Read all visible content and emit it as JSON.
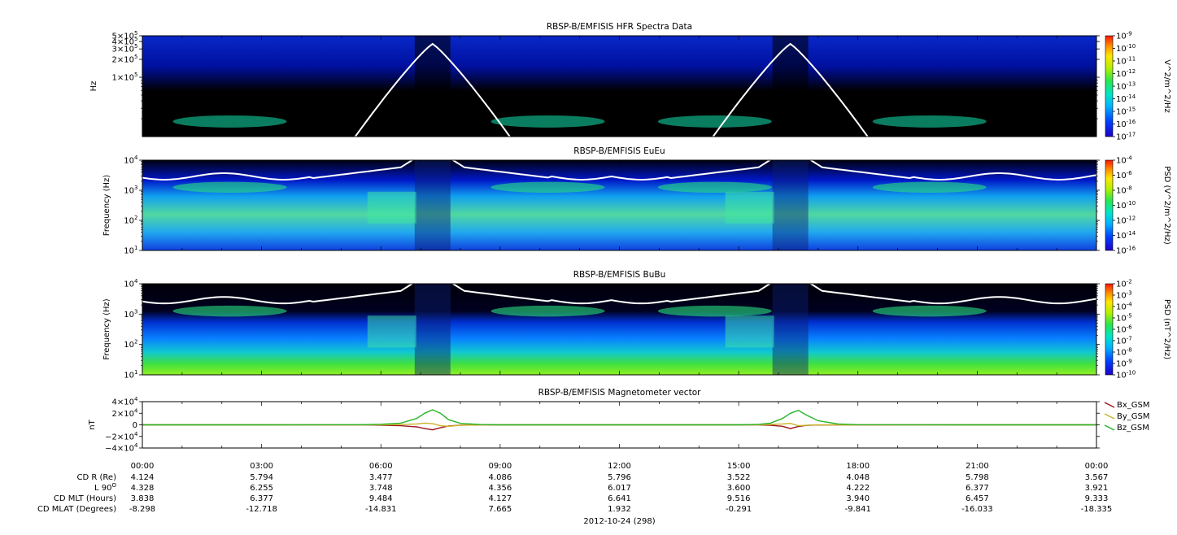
{
  "chart_data": [
    {
      "type": "heatmap",
      "title": "RBSP-B/EMFISIS  HFR Spectra Data",
      "ylabel": "Hz",
      "scale": "log",
      "yticks": [
        {
          "v": 100000,
          "m": "1",
          "e": "5"
        },
        {
          "v": 200000,
          "m": "2",
          "e": "5"
        },
        {
          "v": 300000,
          "m": "3",
          "e": "5"
        },
        {
          "v": 400000,
          "m": "4",
          "e": "5"
        },
        {
          "v": 500000,
          "m": "5",
          "e": "5"
        }
      ],
      "ylim": [
        10000,
        500000
      ],
      "colorbar": {
        "label": "V^2/m^2/Hz",
        "ticks": [
          {
            "m": "10",
            "e": "-9"
          },
          {
            "m": "10",
            "e": "-10"
          },
          {
            "m": "10",
            "e": "-11"
          },
          {
            "m": "10",
            "e": "-12"
          },
          {
            "m": "10",
            "e": "-13"
          },
          {
            "m": "10",
            "e": "-14"
          },
          {
            "m": "10",
            "e": "-15"
          },
          {
            "m": "10",
            "e": "-16"
          },
          {
            "m": "10",
            "e": "-17"
          }
        ]
      }
    },
    {
      "type": "heatmap",
      "title": "RBSP-B/EMFISIS  EuEu",
      "ylabel": "Frequency (Hz)",
      "scale": "log",
      "yticks": [
        {
          "v": 10,
          "m": "10",
          "e": "1"
        },
        {
          "v": 100,
          "m": "10",
          "e": "2"
        },
        {
          "v": 1000,
          "m": "10",
          "e": "3"
        },
        {
          "v": 10000,
          "m": "10",
          "e": "4"
        }
      ],
      "ylim": [
        10,
        10000
      ],
      "colorbar": {
        "label": "PSD (V^2/m^2/Hz)",
        "ticks": [
          {
            "m": "10",
            "e": "-4"
          },
          {
            "m": "10",
            "e": "-6"
          },
          {
            "m": "10",
            "e": "-8"
          },
          {
            "m": "10",
            "e": "-10"
          },
          {
            "m": "10",
            "e": "-12"
          },
          {
            "m": "10",
            "e": "-14"
          },
          {
            "m": "10",
            "e": "-16"
          }
        ]
      }
    },
    {
      "type": "heatmap",
      "title": "RBSP-B/EMFISIS  BuBu",
      "ylabel": "Frequency (Hz)",
      "scale": "log",
      "yticks": [
        {
          "v": 10,
          "m": "10",
          "e": "1"
        },
        {
          "v": 100,
          "m": "10",
          "e": "2"
        },
        {
          "v": 1000,
          "m": "10",
          "e": "3"
        },
        {
          "v": 10000,
          "m": "10",
          "e": "4"
        }
      ],
      "ylim": [
        10,
        10000
      ],
      "colorbar": {
        "label": "PSD (nT^2/Hz)",
        "ticks": [
          {
            "m": "10",
            "e": "-2"
          },
          {
            "m": "10",
            "e": "-3"
          },
          {
            "m": "10",
            "e": "-4"
          },
          {
            "m": "10",
            "e": "-5"
          },
          {
            "m": "10",
            "e": "-6"
          },
          {
            "m": "10",
            "e": "-7"
          },
          {
            "m": "10",
            "e": "-8"
          },
          {
            "m": "10",
            "e": "-9"
          },
          {
            "m": "10",
            "e": "-10"
          }
        ]
      }
    },
    {
      "type": "line",
      "title": "RBSP-B/EMFISIS  Magnetometer vector",
      "ylabel": "nT",
      "ylim": [
        -40000,
        40000
      ],
      "yticks": [
        {
          "v": 40000,
          "label": "4×10",
          "e": "4"
        },
        {
          "v": 20000,
          "label": "2×10",
          "e": "4"
        },
        {
          "v": 0,
          "label": "0",
          "e": ""
        },
        {
          "v": -20000,
          "label": "−2×10",
          "e": "4"
        },
        {
          "v": -40000,
          "label": "−4×10",
          "e": "4"
        }
      ],
      "x": [
        0,
        3,
        5.5,
        6.0,
        6.5,
        6.9,
        7.1,
        7.3,
        7.5,
        7.7,
        8.0,
        8.5,
        9,
        12,
        15,
        15.5,
        15.8,
        16.1,
        16.3,
        16.5,
        16.7,
        17.0,
        17.5,
        18,
        21,
        24
      ],
      "series": [
        {
          "name": "Bx_GSM",
          "color": "#a0141e",
          "values": [
            0,
            0,
            -200,
            -600,
            -1500,
            -3500,
            -6500,
            -8500,
            -5000,
            -2000,
            -600,
            -200,
            0,
            0,
            0,
            -200,
            -700,
            -2500,
            -6500,
            -3000,
            -1000,
            -300,
            -100,
            0,
            0,
            0
          ]
        },
        {
          "name": "By_GSM",
          "color": "#c8b428",
          "values": [
            0,
            0,
            0,
            100,
            400,
            1500,
            3000,
            2000,
            -1500,
            -2500,
            -800,
            -200,
            0,
            0,
            0,
            100,
            500,
            1500,
            2500,
            -1500,
            -800,
            -200,
            0,
            0,
            0,
            0
          ]
        },
        {
          "name": "Bz_GSM",
          "color": "#28b428",
          "values": [
            0,
            0,
            300,
            1000,
            3000,
            11000,
            20000,
            26000,
            20000,
            9000,
            2500,
            600,
            0,
            0,
            0,
            800,
            3000,
            11000,
            20000,
            25000,
            17000,
            7000,
            1500,
            300,
            0,
            0
          ]
        }
      ]
    }
  ],
  "xaxis": {
    "ticks": [
      "00:00",
      "03:00",
      "06:00",
      "09:00",
      "12:00",
      "15:00",
      "18:00",
      "21:00",
      "00:00"
    ],
    "date_label": "2012-10-24 (298)"
  },
  "ephemeris": [
    {
      "label": "CD R (Re)",
      "values": [
        "4.124",
        "5.794",
        "3.477",
        "4.086",
        "5.796",
        "3.522",
        "4.048",
        "5.798",
        "3.567"
      ]
    },
    {
      "label": "L 90",
      "sup": "O",
      "values": [
        "4.328",
        "6.255",
        "3.748",
        "4.356",
        "6.017",
        "3.600",
        "4.222",
        "6.377",
        "3.921"
      ]
    },
    {
      "label": "CD MLT (Hours)",
      "values": [
        "3.838",
        "6.377",
        "9.484",
        "4.127",
        "6.641",
        "9.516",
        "3.940",
        "6.457",
        "9.333"
      ]
    },
    {
      "label": "CD MLAT (Degrees)",
      "values": [
        "-8.298",
        "-12.718",
        "-14.831",
        "7.665",
        "1.932",
        "-0.291",
        "-9.841",
        "-16.033",
        "-18.335"
      ]
    }
  ]
}
